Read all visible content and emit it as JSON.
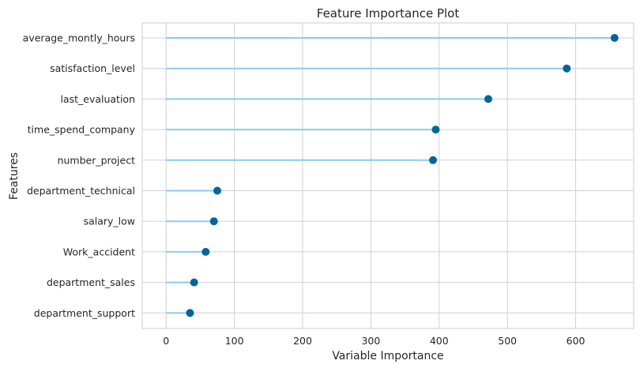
{
  "chart_data": {
    "type": "lollipop",
    "title": "Feature Importance Plot",
    "xlabel": "Variable Importance",
    "ylabel": "Features",
    "xlim": [
      -35,
      685
    ],
    "xticks": [
      0,
      100,
      200,
      300,
      400,
      500,
      600
    ],
    "grid": true,
    "categories": [
      "average_montly_hours",
      "satisfaction_level",
      "last_evaluation",
      "time_spend_company",
      "number_project",
      "department_technical",
      "salary_low",
      "Work_accident",
      "department_sales",
      "department_support"
    ],
    "values": [
      657,
      587,
      472,
      395,
      391,
      75,
      70,
      58,
      41,
      35
    ],
    "colors": {
      "stem": "#87CEEB",
      "marker": "#006699",
      "grid": "#d0d0d0",
      "frame": "#cccccc"
    }
  }
}
